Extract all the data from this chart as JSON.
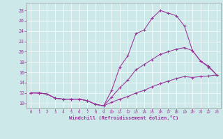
{
  "xlabel": "Windchill (Refroidissement éolien,°C)",
  "background_color": "#cce8e8",
  "line_color": "#993399",
  "xlim": [
    -0.5,
    23.5
  ],
  "ylim": [
    9.0,
    29.5
  ],
  "xticks": [
    0,
    1,
    2,
    3,
    4,
    5,
    6,
    7,
    8,
    9,
    10,
    11,
    12,
    13,
    14,
    15,
    16,
    17,
    18,
    19,
    20,
    21,
    22,
    23
  ],
  "yticks": [
    10,
    12,
    14,
    16,
    18,
    20,
    22,
    24,
    26,
    28
  ],
  "series": [
    {
      "x": [
        0,
        1,
        2,
        3,
        4,
        5,
        6,
        7,
        8,
        9,
        10,
        11,
        12,
        13,
        14,
        15,
        16,
        17,
        18,
        19,
        20,
        21,
        22,
        23
      ],
      "y": [
        12,
        12,
        11.8,
        11,
        10.8,
        10.8,
        10.8,
        10.5,
        9.8,
        9.5,
        12.5,
        17,
        19.2,
        23.5,
        24.2,
        26.5,
        28,
        27.5,
        27,
        25,
        20.2,
        18.2,
        17.0,
        15.5
      ]
    },
    {
      "x": [
        0,
        1,
        2,
        3,
        4,
        5,
        6,
        7,
        8,
        9,
        10,
        11,
        12,
        13,
        14,
        15,
        16,
        17,
        18,
        19,
        20,
        21,
        22,
        23
      ],
      "y": [
        12,
        12,
        11.8,
        11,
        10.8,
        10.8,
        10.8,
        10.5,
        9.8,
        9.5,
        11.2,
        13.0,
        14.5,
        16.5,
        17.5,
        18.5,
        19.5,
        20.0,
        20.5,
        20.8,
        20.2,
        18.2,
        17.2,
        15.5
      ]
    },
    {
      "x": [
        0,
        1,
        2,
        3,
        4,
        5,
        6,
        7,
        8,
        9,
        10,
        11,
        12,
        13,
        14,
        15,
        16,
        17,
        18,
        19,
        20,
        21,
        22,
        23
      ],
      "y": [
        12,
        12,
        11.8,
        11,
        10.8,
        10.8,
        10.8,
        10.5,
        9.8,
        9.5,
        10.2,
        10.8,
        11.3,
        12.0,
        12.5,
        13.2,
        13.8,
        14.3,
        14.8,
        15.2,
        15.0,
        15.2,
        15.3,
        15.5
      ]
    }
  ]
}
